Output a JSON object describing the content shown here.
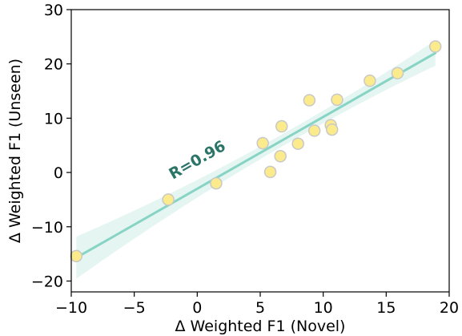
{
  "chart_data": {
    "type": "scatter",
    "xlabel": "Δ Weighted F1 (Novel)",
    "ylabel": "Δ Weighted F1 (Unseen)",
    "xlim": [
      -10,
      20
    ],
    "ylim": [
      -22,
      30
    ],
    "xticks": [
      -10,
      -5,
      0,
      5,
      10,
      15,
      20
    ],
    "yticks": [
      -20,
      -10,
      0,
      10,
      20,
      30
    ],
    "xtick_labels": [
      "−10",
      "−5",
      "0",
      "5",
      "10",
      "15",
      "20"
    ],
    "ytick_labels": [
      "−20",
      "−10",
      "0",
      "10",
      "20",
      "30"
    ],
    "grid": false,
    "points": [
      {
        "x": -9.6,
        "y": -15.4
      },
      {
        "x": -2.3,
        "y": -5.0
      },
      {
        "x": 1.5,
        "y": -2.0
      },
      {
        "x": 5.2,
        "y": 5.4
      },
      {
        "x": 5.8,
        "y": 0.1
      },
      {
        "x": 6.6,
        "y": 3.0
      },
      {
        "x": 6.7,
        "y": 8.5
      },
      {
        "x": 8.0,
        "y": 5.3
      },
      {
        "x": 8.9,
        "y": 13.3
      },
      {
        "x": 9.3,
        "y": 7.7
      },
      {
        "x": 10.6,
        "y": 8.7
      },
      {
        "x": 10.7,
        "y": 7.9
      },
      {
        "x": 11.1,
        "y": 13.4
      },
      {
        "x": 13.7,
        "y": 16.9
      },
      {
        "x": 15.9,
        "y": 18.3
      },
      {
        "x": 18.9,
        "y": 23.2
      }
    ],
    "fit_line": {
      "x": [
        -9.6,
        18.9
      ],
      "y": [
        -15.7,
        22.0
      ]
    },
    "annotation": "R=0.96",
    "colors": {
      "point_fill": "#FBEB8C",
      "point_edge": "#C8C8C8",
      "fit_line": "#88D4C4",
      "confidence_band": "#D8F1EC",
      "annotation": "#2A7468"
    }
  }
}
